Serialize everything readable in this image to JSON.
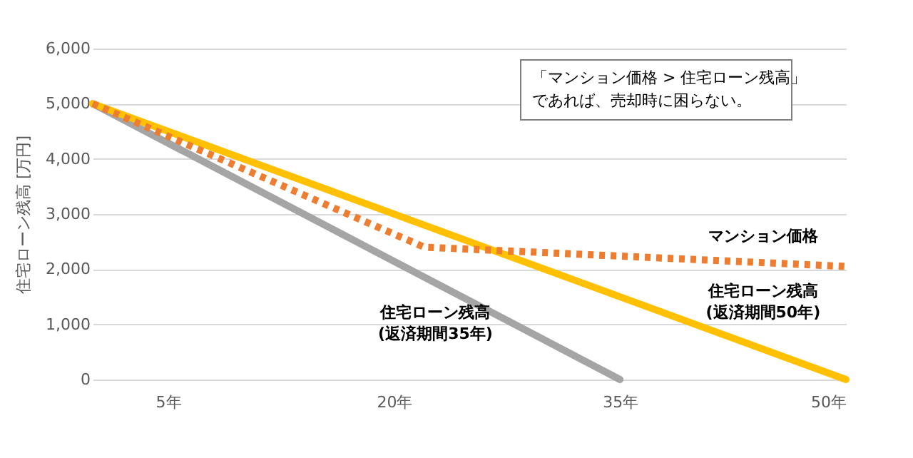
{
  "chart_data": {
    "type": "line",
    "ylabel": "住宅ローン残高 [万円]",
    "xlim": [
      0,
      50
    ],
    "xticks": [
      {
        "value": 5,
        "label": "5年"
      },
      {
        "value": 20,
        "label": "20年"
      },
      {
        "value": 35,
        "label": "35年"
      },
      {
        "value": 50,
        "label": "50年"
      }
    ],
    "ylim": [
      0,
      6000
    ],
    "yticks": [
      {
        "value": 0,
        "label": "0"
      },
      {
        "value": 1000,
        "label": "1,000"
      },
      {
        "value": 2000,
        "label": "2,000"
      },
      {
        "value": 3000,
        "label": "3,000"
      },
      {
        "value": 4000,
        "label": "4,000"
      },
      {
        "value": 5000,
        "label": "5,000"
      },
      {
        "value": 6000,
        "label": "6,000"
      }
    ],
    "grid": "y",
    "series": [
      {
        "name": "住宅ローン残高\n(返済期間35年)",
        "color": "#a5a5a5",
        "line_style": "solid",
        "x": [
          0,
          35
        ],
        "values": [
          5000,
          0
        ]
      },
      {
        "name": "住宅ローン残高\n(返済期間50年)",
        "color": "#ffc000",
        "line_style": "solid",
        "x": [
          0,
          50
        ],
        "values": [
          5000,
          0
        ]
      },
      {
        "name": "マンション価格",
        "color": "#ed7d31",
        "line_style": "dotted",
        "x": [
          0,
          22,
          50
        ],
        "values": [
          5000,
          2400,
          2050
        ]
      }
    ],
    "annotations": [
      "「マンション価格 > 住宅ローン残高」",
      "であれば、売却時に困らない。"
    ]
  }
}
